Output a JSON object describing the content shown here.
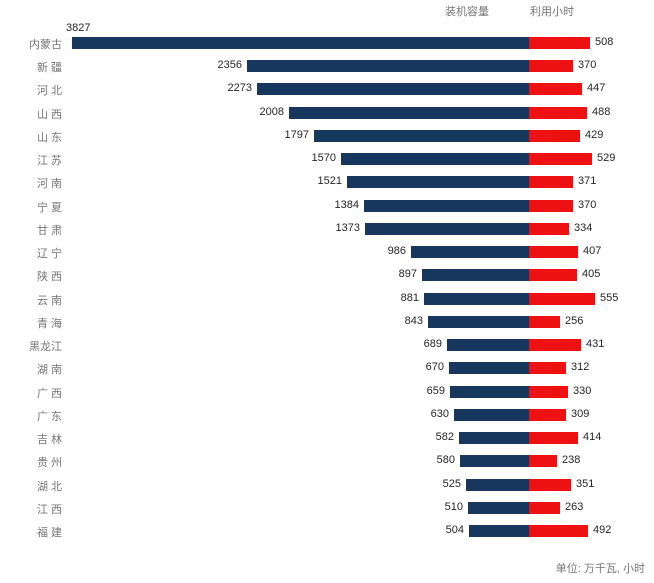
{
  "chart_data": {
    "type": "bar",
    "subtype": "diverging-horizontal-tornado",
    "title": "",
    "categories": [
      "内蒙古",
      "新 疆",
      "河 北",
      "山 西",
      "山 东",
      "江 苏",
      "河 南",
      "宁 夏",
      "甘 肃",
      "辽 宁",
      "陕 西",
      "云 南",
      "青 海",
      "黑龙江",
      "湖 南",
      "广 西",
      "广 东",
      "吉 林",
      "贵 州",
      "湖 北",
      "江 西",
      "福 建"
    ],
    "series": [
      {
        "name": "装机容量",
        "direction": "left",
        "color": "#17375E",
        "values": [
          3827,
          2356,
          2273,
          2008,
          1797,
          1570,
          1521,
          1384,
          1373,
          986,
          897,
          881,
          843,
          689,
          670,
          659,
          630,
          582,
          580,
          525,
          510,
          504
        ]
      },
      {
        "name": "利用小时",
        "direction": "right",
        "color": "#EE1111",
        "values": [
          508,
          370,
          447,
          488,
          429,
          529,
          371,
          370,
          334,
          407,
          405,
          555,
          256,
          431,
          312,
          330,
          309,
          414,
          238,
          351,
          263,
          492
        ]
      }
    ],
    "unit_note": "单位: 万千瓦, 小时",
    "value_labels": "outside-end",
    "grid": false,
    "legend_position": "top-right",
    "axis": {
      "shared_numeric_scale": true,
      "left_max": 3827,
      "right_max": 555
    },
    "text_colors": {
      "category": "#767676",
      "value": "#262626",
      "legend": "#767676",
      "note": "#767676"
    }
  }
}
